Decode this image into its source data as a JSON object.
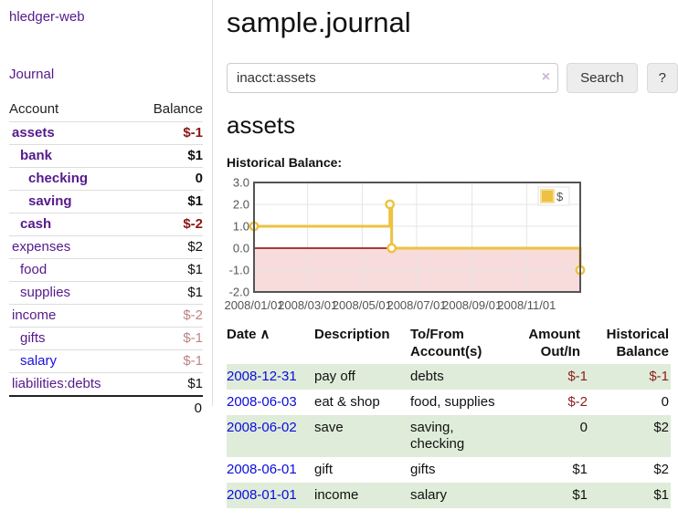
{
  "app": {
    "brand": "hledger-web",
    "nav_journal": "Journal"
  },
  "sidebar": {
    "header": {
      "account": "Account",
      "balance": "Balance"
    },
    "accounts": [
      {
        "name": "assets",
        "balance": "$-1",
        "indent": 0,
        "bold": true,
        "neg": true,
        "soft": false,
        "blue": false
      },
      {
        "name": "bank",
        "balance": "$1",
        "indent": 1,
        "bold": true,
        "neg": false,
        "soft": false,
        "blue": false
      },
      {
        "name": "checking",
        "balance": "0",
        "indent": 2,
        "bold": true,
        "neg": false,
        "soft": false,
        "blue": false
      },
      {
        "name": "saving",
        "balance": "$1",
        "indent": 2,
        "bold": true,
        "neg": false,
        "soft": false,
        "blue": false
      },
      {
        "name": "cash",
        "balance": "$-2",
        "indent": 1,
        "bold": true,
        "neg": true,
        "soft": false,
        "blue": false
      },
      {
        "name": "expenses",
        "balance": "$2",
        "indent": 0,
        "bold": false,
        "neg": false,
        "soft": false,
        "blue": false
      },
      {
        "name": "food",
        "balance": "$1",
        "indent": 1,
        "bold": false,
        "neg": false,
        "soft": false,
        "blue": false
      },
      {
        "name": "supplies",
        "balance": "$1",
        "indent": 1,
        "bold": false,
        "neg": false,
        "soft": false,
        "blue": false
      },
      {
        "name": "income",
        "balance": "$-2",
        "indent": 0,
        "bold": false,
        "neg": true,
        "soft": true,
        "blue": false
      },
      {
        "name": "gifts",
        "balance": "$-1",
        "indent": 1,
        "bold": false,
        "neg": true,
        "soft": true,
        "blue": false
      },
      {
        "name": "salary",
        "balance": "$-1",
        "indent": 1,
        "bold": false,
        "neg": true,
        "soft": true,
        "blue": true
      },
      {
        "name": "liabilities:debts",
        "balance": "$1",
        "indent": 0,
        "bold": false,
        "neg": false,
        "soft": false,
        "blue": false
      }
    ],
    "total": "0"
  },
  "header": {
    "title": "sample.journal"
  },
  "search": {
    "value": "inacct:assets",
    "clear_icon": "×",
    "button_label": "Search",
    "help_label": "?"
  },
  "main": {
    "account_heading": "assets",
    "chart_label": "Historical Balance:"
  },
  "chart_data": {
    "type": "line",
    "step": true,
    "title": "Historical Balance",
    "series": [
      {
        "label": "$",
        "color": "#edc240",
        "points": [
          [
            "2008-01-01",
            1
          ],
          [
            "2008-06-01",
            2
          ],
          [
            "2008-06-03",
            0
          ],
          [
            "2008-12-31",
            -1
          ]
        ]
      }
    ],
    "x_range": [
      "2008-01-01",
      "2008-12-31"
    ],
    "y_range": [
      -2,
      3
    ],
    "x_ticks": [
      {
        "date": "2008-01-01",
        "label": "2008/01/01"
      },
      {
        "date": "2008-03-01",
        "label": "2008/03/01"
      },
      {
        "date": "2008-05-01",
        "label": "2008/05/01"
      },
      {
        "date": "2008-07-01",
        "label": "2008/07/01"
      },
      {
        "date": "2008-09-01",
        "label": "2008/09/01"
      },
      {
        "date": "2008-11-01",
        "label": "2008/11/01"
      }
    ],
    "y_ticks": [
      {
        "value": 3,
        "label": "3.0"
      },
      {
        "value": 2,
        "label": "2.0"
      },
      {
        "value": 1,
        "label": "1.0"
      },
      {
        "value": 0,
        "label": "0.0"
      },
      {
        "value": -1,
        "label": "-1.0"
      },
      {
        "value": -2,
        "label": "-2.0"
      }
    ],
    "grid": true,
    "legend_position": "top-right",
    "negative_region_color": "#f8dcdc",
    "zero_line_color": "#8b0000"
  },
  "register": {
    "columns": {
      "date": "Date",
      "sort_indicator": "∧",
      "description": "Description",
      "tofrom": "To/From Account(s)",
      "amount": "Amount Out/In",
      "historical": "Historical Balance"
    },
    "rows": [
      {
        "date": "2008-12-31",
        "description": "pay off",
        "accounts": "debts",
        "amount": "$-1",
        "balance": "$-1",
        "amount_neg": true,
        "balance_neg": true,
        "shade": true
      },
      {
        "date": "2008-06-03",
        "description": "eat & shop",
        "accounts": "food, supplies",
        "amount": "$-2",
        "balance": "0",
        "amount_neg": true,
        "balance_neg": false,
        "shade": false
      },
      {
        "date": "2008-06-02",
        "description": "save",
        "accounts": "saving, checking",
        "amount": "0",
        "balance": "$2",
        "amount_neg": false,
        "balance_neg": false,
        "shade": true
      },
      {
        "date": "2008-06-01",
        "description": "gift",
        "accounts": "gifts",
        "amount": "$1",
        "balance": "$2",
        "amount_neg": false,
        "balance_neg": false,
        "shade": false
      },
      {
        "date": "2008-01-01",
        "description": "income",
        "accounts": "salary",
        "amount": "$1",
        "balance": "$1",
        "amount_neg": false,
        "balance_neg": false,
        "shade": true
      }
    ]
  }
}
